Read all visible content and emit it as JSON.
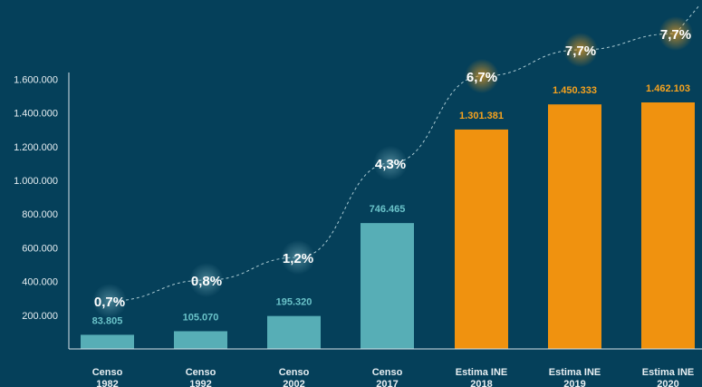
{
  "chart_data": {
    "type": "bar",
    "title": "",
    "xlabel": "",
    "ylabel": "",
    "ylim": [
      0,
      1600000
    ],
    "y_ticks": [
      {
        "value": 200000,
        "label": "200.000"
      },
      {
        "value": 400000,
        "label": "400.000"
      },
      {
        "value": 600000,
        "label": "600.000"
      },
      {
        "value": 800000,
        "label": "800.000"
      },
      {
        "value": 1000000,
        "label": "1.000.000"
      },
      {
        "value": 1200000,
        "label": "1.200.000"
      },
      {
        "value": 1400000,
        "label": "1.400.000"
      },
      {
        "value": 1600000,
        "label": "1.600.000"
      }
    ],
    "grid": false,
    "legend": "none",
    "bars": [
      {
        "category": [
          "Censo",
          "1982"
        ],
        "value": 83805,
        "label": "83.805",
        "kind": "censo"
      },
      {
        "category": [
          "Censo",
          "1992"
        ],
        "value": 105070,
        "label": "105.070",
        "kind": "censo"
      },
      {
        "category": [
          "Censo",
          "2002"
        ],
        "value": 195320,
        "label": "195.320",
        "kind": "censo"
      },
      {
        "category": [
          "Censo",
          "2017"
        ],
        "value": 746465,
        "label": "746.465",
        "kind": "censo"
      },
      {
        "category": [
          "Estima INE",
          "2018"
        ],
        "value": 1301381,
        "label": "1.301.381",
        "kind": "estima"
      },
      {
        "category": [
          "Estima INE",
          "2019"
        ],
        "value": 1450333,
        "label": "1.450.333",
        "kind": "estima"
      },
      {
        "category": [
          "Estima INE",
          "2020"
        ],
        "value": 1462103,
        "label": "1.462.103",
        "kind": "estima"
      }
    ],
    "percent_series": [
      {
        "label": "0,7%",
        "value": 0.7
      },
      {
        "label": "0,8%",
        "value": 0.8
      },
      {
        "label": "1,2%",
        "value": 1.2
      },
      {
        "label": "4,3%",
        "value": 4.3
      },
      {
        "label": "6,7%",
        "value": 6.7
      },
      {
        "label": "7,7%",
        "value": 7.7
      },
      {
        "label": "7,7%",
        "value": 7.7
      }
    ],
    "colors": {
      "background": "#05405a",
      "censo": "#57aeb6",
      "estima": "#f0920f",
      "censo_label": "#6ac3c9",
      "estima_label": "#f6a21e",
      "axis": "#d6e2e8",
      "trend": "#a9c9d2",
      "glow_censo": "#7fb6c2",
      "glow_estima": "#f6a21e"
    }
  }
}
